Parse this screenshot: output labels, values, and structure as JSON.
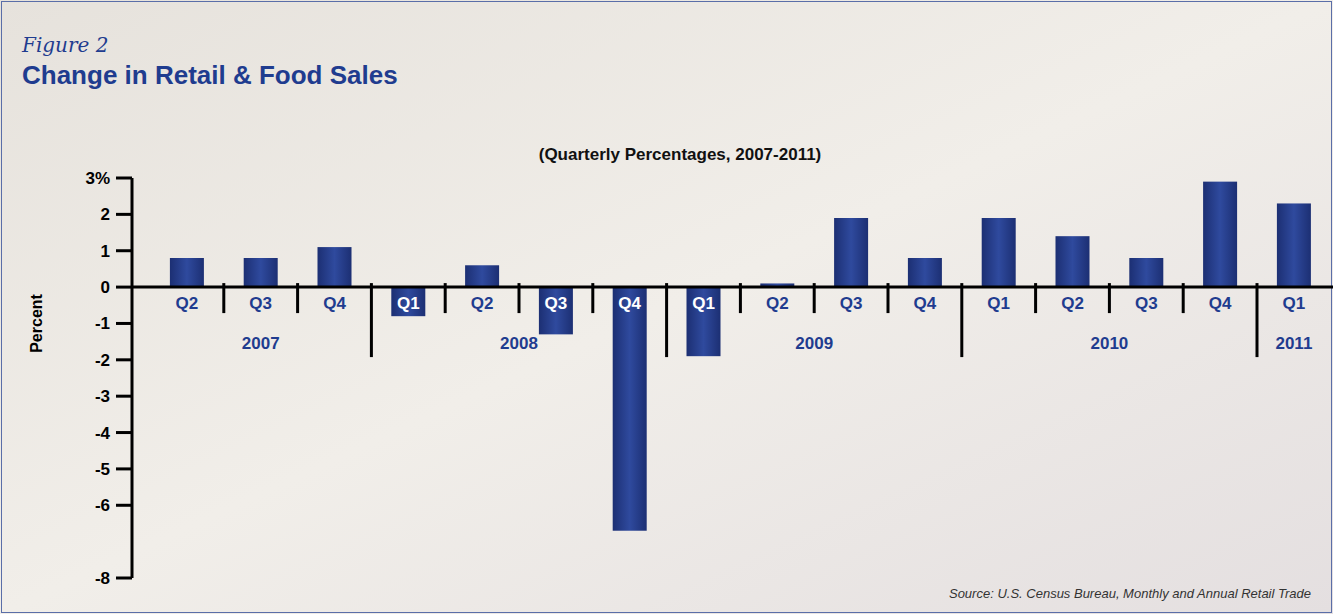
{
  "chart_data": {
    "type": "bar",
    "label": "Figure 2",
    "title": "Change in Retail & Food Sales",
    "subtitle": "(Quarterly Percentages, 2007-2011)",
    "y_label": "Percent",
    "source": "Source: U.S. Census Bureau, Monthly and Annual Retail Trade",
    "categories": [
      "Q2",
      "Q3",
      "Q4",
      "Q1",
      "Q2",
      "Q3",
      "Q4",
      "Q1",
      "Q2",
      "Q3",
      "Q4",
      "Q1",
      "Q2",
      "Q3",
      "Q4",
      "Q1"
    ],
    "groups": [
      "2007",
      "2007",
      "2007",
      "2008",
      "2008",
      "2008",
      "2008",
      "2009",
      "2009",
      "2009",
      "2009",
      "2010",
      "2010",
      "2010",
      "2010",
      "2011"
    ],
    "values": [
      0.8,
      0.8,
      1.1,
      -0.8,
      0.6,
      -1.3,
      -6.7,
      -1.9,
      0.1,
      1.9,
      0.8,
      1.9,
      1.4,
      0.8,
      2.9,
      2.3
    ],
    "color": "#1c2f73",
    "ylim": [
      -8,
      3
    ],
    "yticks": [
      {
        "value": 3,
        "label": "3%"
      },
      2,
      1,
      0,
      -1,
      -2,
      -3,
      -4,
      -5,
      -6,
      -8
    ],
    "grid": false
  }
}
